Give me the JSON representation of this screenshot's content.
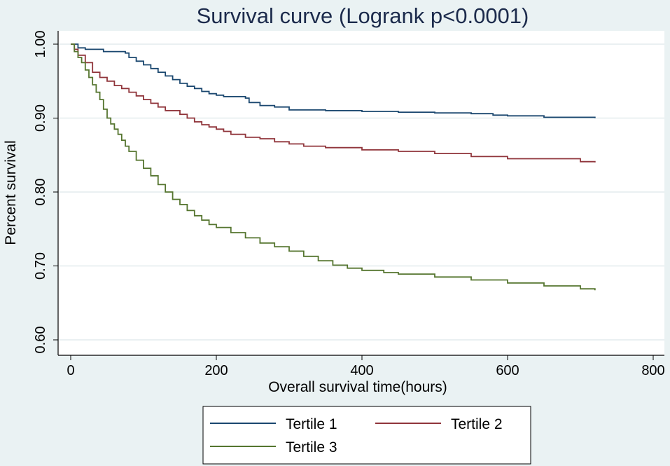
{
  "chart_data": {
    "type": "line",
    "title": "Survival curve (Logrank p<0.0001)",
    "xlabel": "Overall survival time(hours)",
    "ylabel": "Percent survival",
    "xlim": [
      0,
      800
    ],
    "ylim": [
      0.6,
      1.0
    ],
    "xticks": [
      0,
      200,
      400,
      600,
      800
    ],
    "xtick_labels": [
      "0",
      "200",
      "400",
      "600",
      "800"
    ],
    "yticks": [
      0.6,
      0.7,
      0.8,
      0.9,
      1.0
    ],
    "ytick_labels": [
      "0.60",
      "0.70",
      "0.80",
      "0.90",
      "1.00"
    ],
    "grid": true,
    "legend_position": "bottom",
    "series": [
      {
        "name": "Tertile 1",
        "color": "#1a476f",
        "x": [
          0,
          10,
          20,
          45,
          75,
          80,
          90,
          100,
          110,
          120,
          130,
          140,
          150,
          160,
          170,
          180,
          190,
          200,
          210,
          240,
          245,
          260,
          280,
          300,
          350,
          400,
          430,
          450,
          500,
          550,
          580,
          600,
          650,
          720
        ],
        "y": [
          1.0,
          0.995,
          0.993,
          0.99,
          0.988,
          0.982,
          0.977,
          0.972,
          0.967,
          0.962,
          0.957,
          0.952,
          0.947,
          0.943,
          0.94,
          0.936,
          0.933,
          0.931,
          0.929,
          0.927,
          0.921,
          0.917,
          0.915,
          0.911,
          0.91,
          0.909,
          0.909,
          0.908,
          0.907,
          0.906,
          0.904,
          0.903,
          0.901,
          0.9
        ]
      },
      {
        "name": "Tertile 2",
        "color": "#90353b",
        "x": [
          0,
          5,
          10,
          20,
          30,
          40,
          50,
          60,
          70,
          80,
          90,
          100,
          110,
          120,
          130,
          150,
          160,
          170,
          180,
          190,
          200,
          210,
          220,
          240,
          260,
          280,
          300,
          320,
          350,
          400,
          450,
          500,
          550,
          600,
          650,
          700,
          720
        ],
        "y": [
          1.0,
          0.993,
          0.985,
          0.975,
          0.962,
          0.955,
          0.95,
          0.944,
          0.94,
          0.935,
          0.93,
          0.925,
          0.92,
          0.915,
          0.91,
          0.905,
          0.9,
          0.895,
          0.891,
          0.888,
          0.885,
          0.882,
          0.878,
          0.874,
          0.872,
          0.868,
          0.865,
          0.862,
          0.86,
          0.857,
          0.855,
          0.852,
          0.848,
          0.845,
          0.845,
          0.841,
          0.84
        ]
      },
      {
        "name": "Tertile 3",
        "color": "#55752f",
        "x": [
          0,
          5,
          10,
          15,
          20,
          25,
          30,
          35,
          40,
          45,
          50,
          55,
          60,
          65,
          70,
          75,
          80,
          90,
          100,
          110,
          120,
          130,
          140,
          150,
          160,
          170,
          180,
          190,
          200,
          220,
          240,
          260,
          280,
          300,
          320,
          340,
          360,
          380,
          400,
          430,
          450,
          500,
          550,
          600,
          650,
          700,
          720
        ],
        "y": [
          1.0,
          0.99,
          0.982,
          0.975,
          0.965,
          0.955,
          0.945,
          0.935,
          0.925,
          0.912,
          0.9,
          0.892,
          0.885,
          0.878,
          0.87,
          0.862,
          0.855,
          0.843,
          0.832,
          0.822,
          0.81,
          0.8,
          0.79,
          0.783,
          0.775,
          0.768,
          0.762,
          0.756,
          0.752,
          0.745,
          0.738,
          0.731,
          0.726,
          0.72,
          0.713,
          0.707,
          0.701,
          0.697,
          0.694,
          0.691,
          0.689,
          0.685,
          0.681,
          0.677,
          0.673,
          0.669,
          0.667
        ]
      }
    ]
  }
}
